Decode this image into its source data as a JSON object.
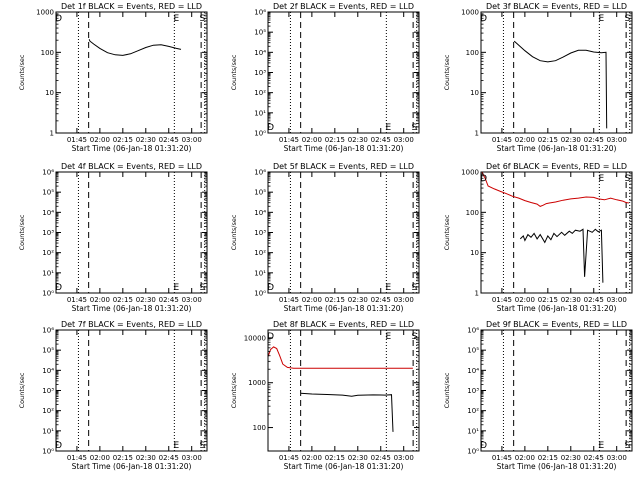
{
  "page": {
    "background": "#ffffff",
    "axis_color": "#000000"
  },
  "series_colors": {
    "events": "#000000",
    "lld": "#cc0000"
  },
  "time_axis": {
    "start": "01:31:20",
    "end": "03:10:00",
    "ticks": [
      "01:45",
      "02:00",
      "02:15",
      "02:30",
      "02:45",
      "03:00"
    ]
  },
  "ylabel": "Counts/sec",
  "xlabel": "Start Time (06-Jan-18 01:31:20)",
  "chart_data": [
    {
      "type": "line",
      "detector": "1f",
      "title": "Det 1f BLACK = Events, RED = LLD",
      "xlabel": "Start Time (06-Jan-18 01:31:20)",
      "ylabel": "Counts/sec",
      "yscale": "log",
      "ylim": [
        1,
        1000
      ],
      "yticks": [
        {
          "v": 1,
          "label": "1"
        },
        {
          "v": 10,
          "label": "10"
        },
        {
          "v": 100,
          "label": "100"
        },
        {
          "v": 1000,
          "label": "1000"
        }
      ],
      "markers": {
        "dotted": [
          "01:46:00",
          "02:48:40",
          "03:08:30"
        ],
        "dashed": [
          "01:52:40",
          "03:06:10"
        ]
      },
      "letters": [
        {
          "char": "D",
          "at": "01:33:00",
          "pos": "top"
        },
        {
          "char": "E",
          "at": "02:50:00",
          "pos": "top"
        },
        {
          "char": "S",
          "at": "03:07:00",
          "pos": "top"
        }
      ],
      "series": [
        {
          "name": "Events",
          "color": "#000000",
          "points": [
            [
              "01:53:00",
              210
            ],
            [
              "01:53:30",
              190
            ],
            [
              "01:56:00",
              160
            ],
            [
              "02:00:00",
              125
            ],
            [
              "02:05:00",
              98
            ],
            [
              "02:10:00",
              87
            ],
            [
              "02:15:00",
              84
            ],
            [
              "02:20:00",
              92
            ],
            [
              "02:25:00",
              110
            ],
            [
              "02:30:00",
              132
            ],
            [
              "02:35:00",
              150
            ],
            [
              "02:40:00",
              155
            ],
            [
              "02:45:00",
              140
            ],
            [
              "02:50:00",
              125
            ],
            [
              "02:53:00",
              118
            ]
          ]
        }
      ]
    },
    {
      "type": "line",
      "detector": "2f",
      "title": "Det 2f BLACK = Events, RED = LLD",
      "xlabel": "Start Time (06-Jan-18 01:31:20)",
      "ylabel": "Counts/sec",
      "yscale": "log",
      "ylim": [
        1,
        1000000
      ],
      "yticks": [
        {
          "v": 1,
          "label": "10⁰"
        },
        {
          "v": 10,
          "label": "10¹"
        },
        {
          "v": 100,
          "label": "10²"
        },
        {
          "v": 1000,
          "label": "10³"
        },
        {
          "v": 10000,
          "label": "10⁴"
        },
        {
          "v": 100000,
          "label": "10⁵"
        },
        {
          "v": 1000000,
          "label": "10⁶"
        }
      ],
      "markers": {
        "dotted": [
          "01:46:00",
          "02:48:40",
          "03:08:30"
        ],
        "dashed": [
          "01:52:40",
          "03:06:10"
        ]
      },
      "letters": [
        {
          "char": "D",
          "at": "01:33:00",
          "pos": "bottom"
        },
        {
          "char": "E",
          "at": "02:50:00",
          "pos": "bottom"
        },
        {
          "char": "S",
          "at": "03:07:00",
          "pos": "bottom"
        }
      ],
      "series": []
    },
    {
      "type": "line",
      "detector": "3f",
      "title": "Det 3f BLACK = Events, RED = LLD",
      "xlabel": "Start Time (06-Jan-18 01:31:20)",
      "ylabel": "Counts/sec",
      "yscale": "log",
      "ylim": [
        1,
        1000
      ],
      "yticks": [
        {
          "v": 1,
          "label": "1"
        },
        {
          "v": 10,
          "label": "10"
        },
        {
          "v": 100,
          "label": "100"
        },
        {
          "v": 1000,
          "label": "1000"
        }
      ],
      "markers": {
        "dotted": [
          "01:46:00",
          "02:48:40",
          "03:08:30"
        ],
        "dashed": [
          "01:52:40",
          "03:06:10"
        ]
      },
      "letters": [
        {
          "char": "D",
          "at": "01:33:00",
          "pos": "top"
        },
        {
          "char": "E",
          "at": "02:50:00",
          "pos": "top"
        },
        {
          "char": "S",
          "at": "03:07:00",
          "pos": "top"
        }
      ],
      "series": [
        {
          "name": "Events",
          "color": "#000000",
          "points": [
            [
              "01:53:00",
              190
            ],
            [
              "01:56:00",
              150
            ],
            [
              "02:00:00",
              110
            ],
            [
              "02:05:00",
              78
            ],
            [
              "02:10:00",
              62
            ],
            [
              "02:15:00",
              58
            ],
            [
              "02:20:00",
              62
            ],
            [
              "02:25:00",
              76
            ],
            [
              "02:30:00",
              96
            ],
            [
              "02:35:00",
              112
            ],
            [
              "02:40:00",
              112
            ],
            [
              "02:45:00",
              102
            ],
            [
              "02:50:00",
              98
            ],
            [
              "02:53:00",
              100
            ],
            [
              "02:53:30",
              1.3
            ]
          ]
        }
      ]
    },
    {
      "type": "line",
      "detector": "4f",
      "title": "Det 4f BLACK = Events, RED = LLD",
      "xlabel": "Start Time (06-Jan-18 01:31:20)",
      "ylabel": "Counts/sec",
      "yscale": "log",
      "ylim": [
        1,
        1000000
      ],
      "yticks": [
        {
          "v": 1,
          "label": "10⁰"
        },
        {
          "v": 10,
          "label": "10¹"
        },
        {
          "v": 100,
          "label": "10²"
        },
        {
          "v": 1000,
          "label": "10³"
        },
        {
          "v": 10000,
          "label": "10⁴"
        },
        {
          "v": 100000,
          "label": "10⁵"
        },
        {
          "v": 1000000,
          "label": "10⁶"
        }
      ],
      "markers": {
        "dotted": [
          "01:46:00",
          "02:48:40",
          "03:08:30"
        ],
        "dashed": [
          "01:52:40",
          "03:06:10"
        ]
      },
      "letters": [
        {
          "char": "D",
          "at": "01:33:00",
          "pos": "bottom"
        },
        {
          "char": "E",
          "at": "02:50:00",
          "pos": "bottom"
        },
        {
          "char": "S",
          "at": "03:07:00",
          "pos": "bottom"
        }
      ],
      "series": []
    },
    {
      "type": "line",
      "detector": "5f",
      "title": "Det 5f BLACK = Events, RED = LLD",
      "xlabel": "Start Time (06-Jan-18 01:31:20)",
      "ylabel": "Counts/sec",
      "yscale": "log",
      "ylim": [
        1,
        1000000
      ],
      "yticks": [
        {
          "v": 1,
          "label": "10⁰"
        },
        {
          "v": 10,
          "label": "10¹"
        },
        {
          "v": 100,
          "label": "10²"
        },
        {
          "v": 1000,
          "label": "10³"
        },
        {
          "v": 10000,
          "label": "10⁴"
        },
        {
          "v": 100000,
          "label": "10⁵"
        },
        {
          "v": 1000000,
          "label": "10⁶"
        }
      ],
      "markers": {
        "dotted": [
          "01:46:00",
          "02:48:40",
          "03:08:30"
        ],
        "dashed": [
          "01:52:40",
          "03:06:10"
        ]
      },
      "letters": [
        {
          "char": "D",
          "at": "01:33:00",
          "pos": "bottom"
        },
        {
          "char": "E",
          "at": "02:50:00",
          "pos": "bottom"
        },
        {
          "char": "S",
          "at": "03:07:00",
          "pos": "bottom"
        }
      ],
      "series": []
    },
    {
      "type": "line",
      "detector": "6f",
      "title": "Det 6f BLACK = Events, RED = LLD",
      "xlabel": "Start Time (06-Jan-18 01:31:20)",
      "ylabel": "Counts/sec",
      "yscale": "log",
      "ylim": [
        1,
        1000
      ],
      "yticks": [
        {
          "v": 1,
          "label": "1"
        },
        {
          "v": 10,
          "label": "10"
        },
        {
          "v": 100,
          "label": "100"
        },
        {
          "v": 1000,
          "label": "1000"
        }
      ],
      "markers": {
        "dotted": [
          "01:46:00",
          "02:48:40",
          "03:08:30"
        ],
        "dashed": [
          "01:52:40",
          "03:06:10"
        ]
      },
      "letters": [
        {
          "char": "D",
          "at": "01:33:00",
          "pos": "top"
        },
        {
          "char": "E",
          "at": "02:50:00",
          "pos": "top"
        },
        {
          "char": "S",
          "at": "03:07:00",
          "pos": "top"
        }
      ],
      "series": [
        {
          "name": "Events",
          "color": "#000000",
          "points": [
            [
              "01:57:00",
              22
            ],
            [
              "01:59:00",
              26
            ],
            [
              "02:00:00",
              20
            ],
            [
              "02:02:00",
              28
            ],
            [
              "02:04:00",
              24
            ],
            [
              "02:06:00",
              30
            ],
            [
              "02:08:00",
              22
            ],
            [
              "02:10:00",
              28
            ],
            [
              "02:13:00",
              18
            ],
            [
              "02:15:00",
              26
            ],
            [
              "02:17:00",
              21
            ],
            [
              "02:19:00",
              30
            ],
            [
              "02:21:00",
              25
            ],
            [
              "02:24:00",
              32
            ],
            [
              "02:26:00",
              27
            ],
            [
              "02:29:00",
              34
            ],
            [
              "02:31:00",
              30
            ],
            [
              "02:33:00",
              36
            ],
            [
              "02:36:00",
              34
            ],
            [
              "02:38:00",
              38
            ],
            [
              "02:39:00",
              2.5
            ],
            [
              "02:41:00",
              36
            ],
            [
              "02:44:00",
              32
            ],
            [
              "02:46:00",
              38
            ],
            [
              "02:48:00",
              33
            ],
            [
              "02:50:00",
              36
            ],
            [
              "02:51:00",
              1.8
            ]
          ]
        },
        {
          "name": "LLD",
          "color": "#cc0000",
          "points": [
            [
              "01:32:00",
              1000
            ],
            [
              "01:34:00",
              700
            ],
            [
              "01:36:00",
              450
            ],
            [
              "01:40:00",
              380
            ],
            [
              "01:44:00",
              330
            ],
            [
              "01:48:00",
              290
            ],
            [
              "01:52:00",
              250
            ],
            [
              "01:56:00",
              225
            ],
            [
              "02:00:00",
              195
            ],
            [
              "02:04:00",
              175
            ],
            [
              "02:08:00",
              160
            ],
            [
              "02:10:00",
              140
            ],
            [
              "02:12:00",
              150
            ],
            [
              "02:14:00",
              165
            ],
            [
              "02:16:00",
              170
            ],
            [
              "02:20:00",
              180
            ],
            [
              "02:25:00",
              200
            ],
            [
              "02:30:00",
              215
            ],
            [
              "02:35:00",
              225
            ],
            [
              "02:40:00",
              240
            ],
            [
              "02:45:00",
              235
            ],
            [
              "02:48:00",
              215
            ],
            [
              "02:52:00",
              205
            ],
            [
              "02:56:00",
              225
            ],
            [
              "03:00:00",
              205
            ],
            [
              "03:04:00",
              190
            ],
            [
              "03:06:00",
              175
            ],
            [
              "03:08:00",
              170
            ]
          ]
        }
      ]
    },
    {
      "type": "line",
      "detector": "7f",
      "title": "Det 7f BLACK = Events, RED = LLD",
      "xlabel": "Start Time (06-Jan-18 01:31:20)",
      "ylabel": "Counts/sec",
      "yscale": "log",
      "ylim": [
        1,
        1000000
      ],
      "yticks": [
        {
          "v": 1,
          "label": "10⁰"
        },
        {
          "v": 10,
          "label": "10¹"
        },
        {
          "v": 100,
          "label": "10²"
        },
        {
          "v": 1000,
          "label": "10³"
        },
        {
          "v": 10000,
          "label": "10⁴"
        },
        {
          "v": 100000,
          "label": "10⁵"
        },
        {
          "v": 1000000,
          "label": "10⁶"
        }
      ],
      "markers": {
        "dotted": [
          "01:46:00",
          "02:48:40",
          "03:08:30"
        ],
        "dashed": [
          "01:52:40",
          "03:06:10"
        ]
      },
      "letters": [
        {
          "char": "D",
          "at": "01:33:00",
          "pos": "bottom"
        },
        {
          "char": "E",
          "at": "02:50:00",
          "pos": "bottom"
        },
        {
          "char": "S",
          "at": "03:07:00",
          "pos": "bottom"
        }
      ],
      "series": []
    },
    {
      "type": "line",
      "detector": "8f",
      "title": "Det 8f BLACK = Events, RED = LLD",
      "xlabel": "Start Time (06-Jan-18 01:31:20)",
      "ylabel": "Counts/sec",
      "yscale": "log",
      "ylim": [
        30,
        15000
      ],
      "yticks": [
        {
          "v": 100,
          "label": "100"
        },
        {
          "v": 1000,
          "label": "1000"
        },
        {
          "v": 10000,
          "label": "10000"
        }
      ],
      "markers": {
        "dotted": [
          "01:46:00",
          "02:48:40",
          "03:08:30"
        ],
        "dashed": [
          "01:52:40",
          "03:06:10"
        ]
      },
      "letters": [
        {
          "char": "D",
          "at": "01:33:00",
          "pos": "top"
        },
        {
          "char": "E",
          "at": "02:50:00",
          "pos": "top"
        },
        {
          "char": "S",
          "at": "03:07:00",
          "pos": "top"
        }
      ],
      "series": [
        {
          "name": "Events",
          "color": "#000000",
          "points": [
            [
              "01:52:40",
              580
            ],
            [
              "02:00:00",
              560
            ],
            [
              "02:10:00",
              545
            ],
            [
              "02:20:00",
              530
            ],
            [
              "02:26:00",
              500
            ],
            [
              "02:30:00",
              525
            ],
            [
              "02:40:00",
              535
            ],
            [
              "02:48:00",
              530
            ],
            [
              "02:52:00",
              540
            ],
            [
              "02:53:00",
              80
            ]
          ]
        },
        {
          "name": "LLD",
          "color": "#cc0000",
          "points": [
            [
              "01:31:20",
              3800
            ],
            [
              "01:33:00",
              5500
            ],
            [
              "01:35:00",
              6300
            ],
            [
              "01:37:00",
              5800
            ],
            [
              "01:39:00",
              4000
            ],
            [
              "01:41:00",
              2600
            ],
            [
              "01:44:00",
              2200
            ],
            [
              "01:48:00",
              2100
            ],
            [
              "02:00:00",
              2100
            ],
            [
              "02:20:00",
              2100
            ],
            [
              "02:40:00",
              2100
            ],
            [
              "03:00:00",
              2100
            ],
            [
              "03:06:00",
              2100
            ]
          ]
        }
      ]
    },
    {
      "type": "line",
      "detector": "9f",
      "title": "Det 9f BLACK = Events, RED = LLD",
      "xlabel": "Start Time (06-Jan-18 01:31:20)",
      "ylabel": "Counts/sec",
      "yscale": "log",
      "ylim": [
        1,
        1000000
      ],
      "yticks": [
        {
          "v": 1,
          "label": "10⁰"
        },
        {
          "v": 10,
          "label": "10¹"
        },
        {
          "v": 100,
          "label": "10²"
        },
        {
          "v": 1000,
          "label": "10³"
        },
        {
          "v": 10000,
          "label": "10⁴"
        },
        {
          "v": 100000,
          "label": "10⁵"
        },
        {
          "v": 1000000,
          "label": "10⁶"
        }
      ],
      "markers": {
        "dotted": [
          "01:46:00",
          "02:48:40",
          "03:08:30"
        ],
        "dashed": [
          "01:52:40",
          "03:06:10"
        ]
      },
      "letters": [
        {
          "char": "D",
          "at": "01:33:00",
          "pos": "bottom"
        },
        {
          "char": "E",
          "at": "02:50:00",
          "pos": "bottom"
        },
        {
          "char": "S",
          "at": "03:07:00",
          "pos": "bottom"
        }
      ],
      "series": []
    }
  ]
}
